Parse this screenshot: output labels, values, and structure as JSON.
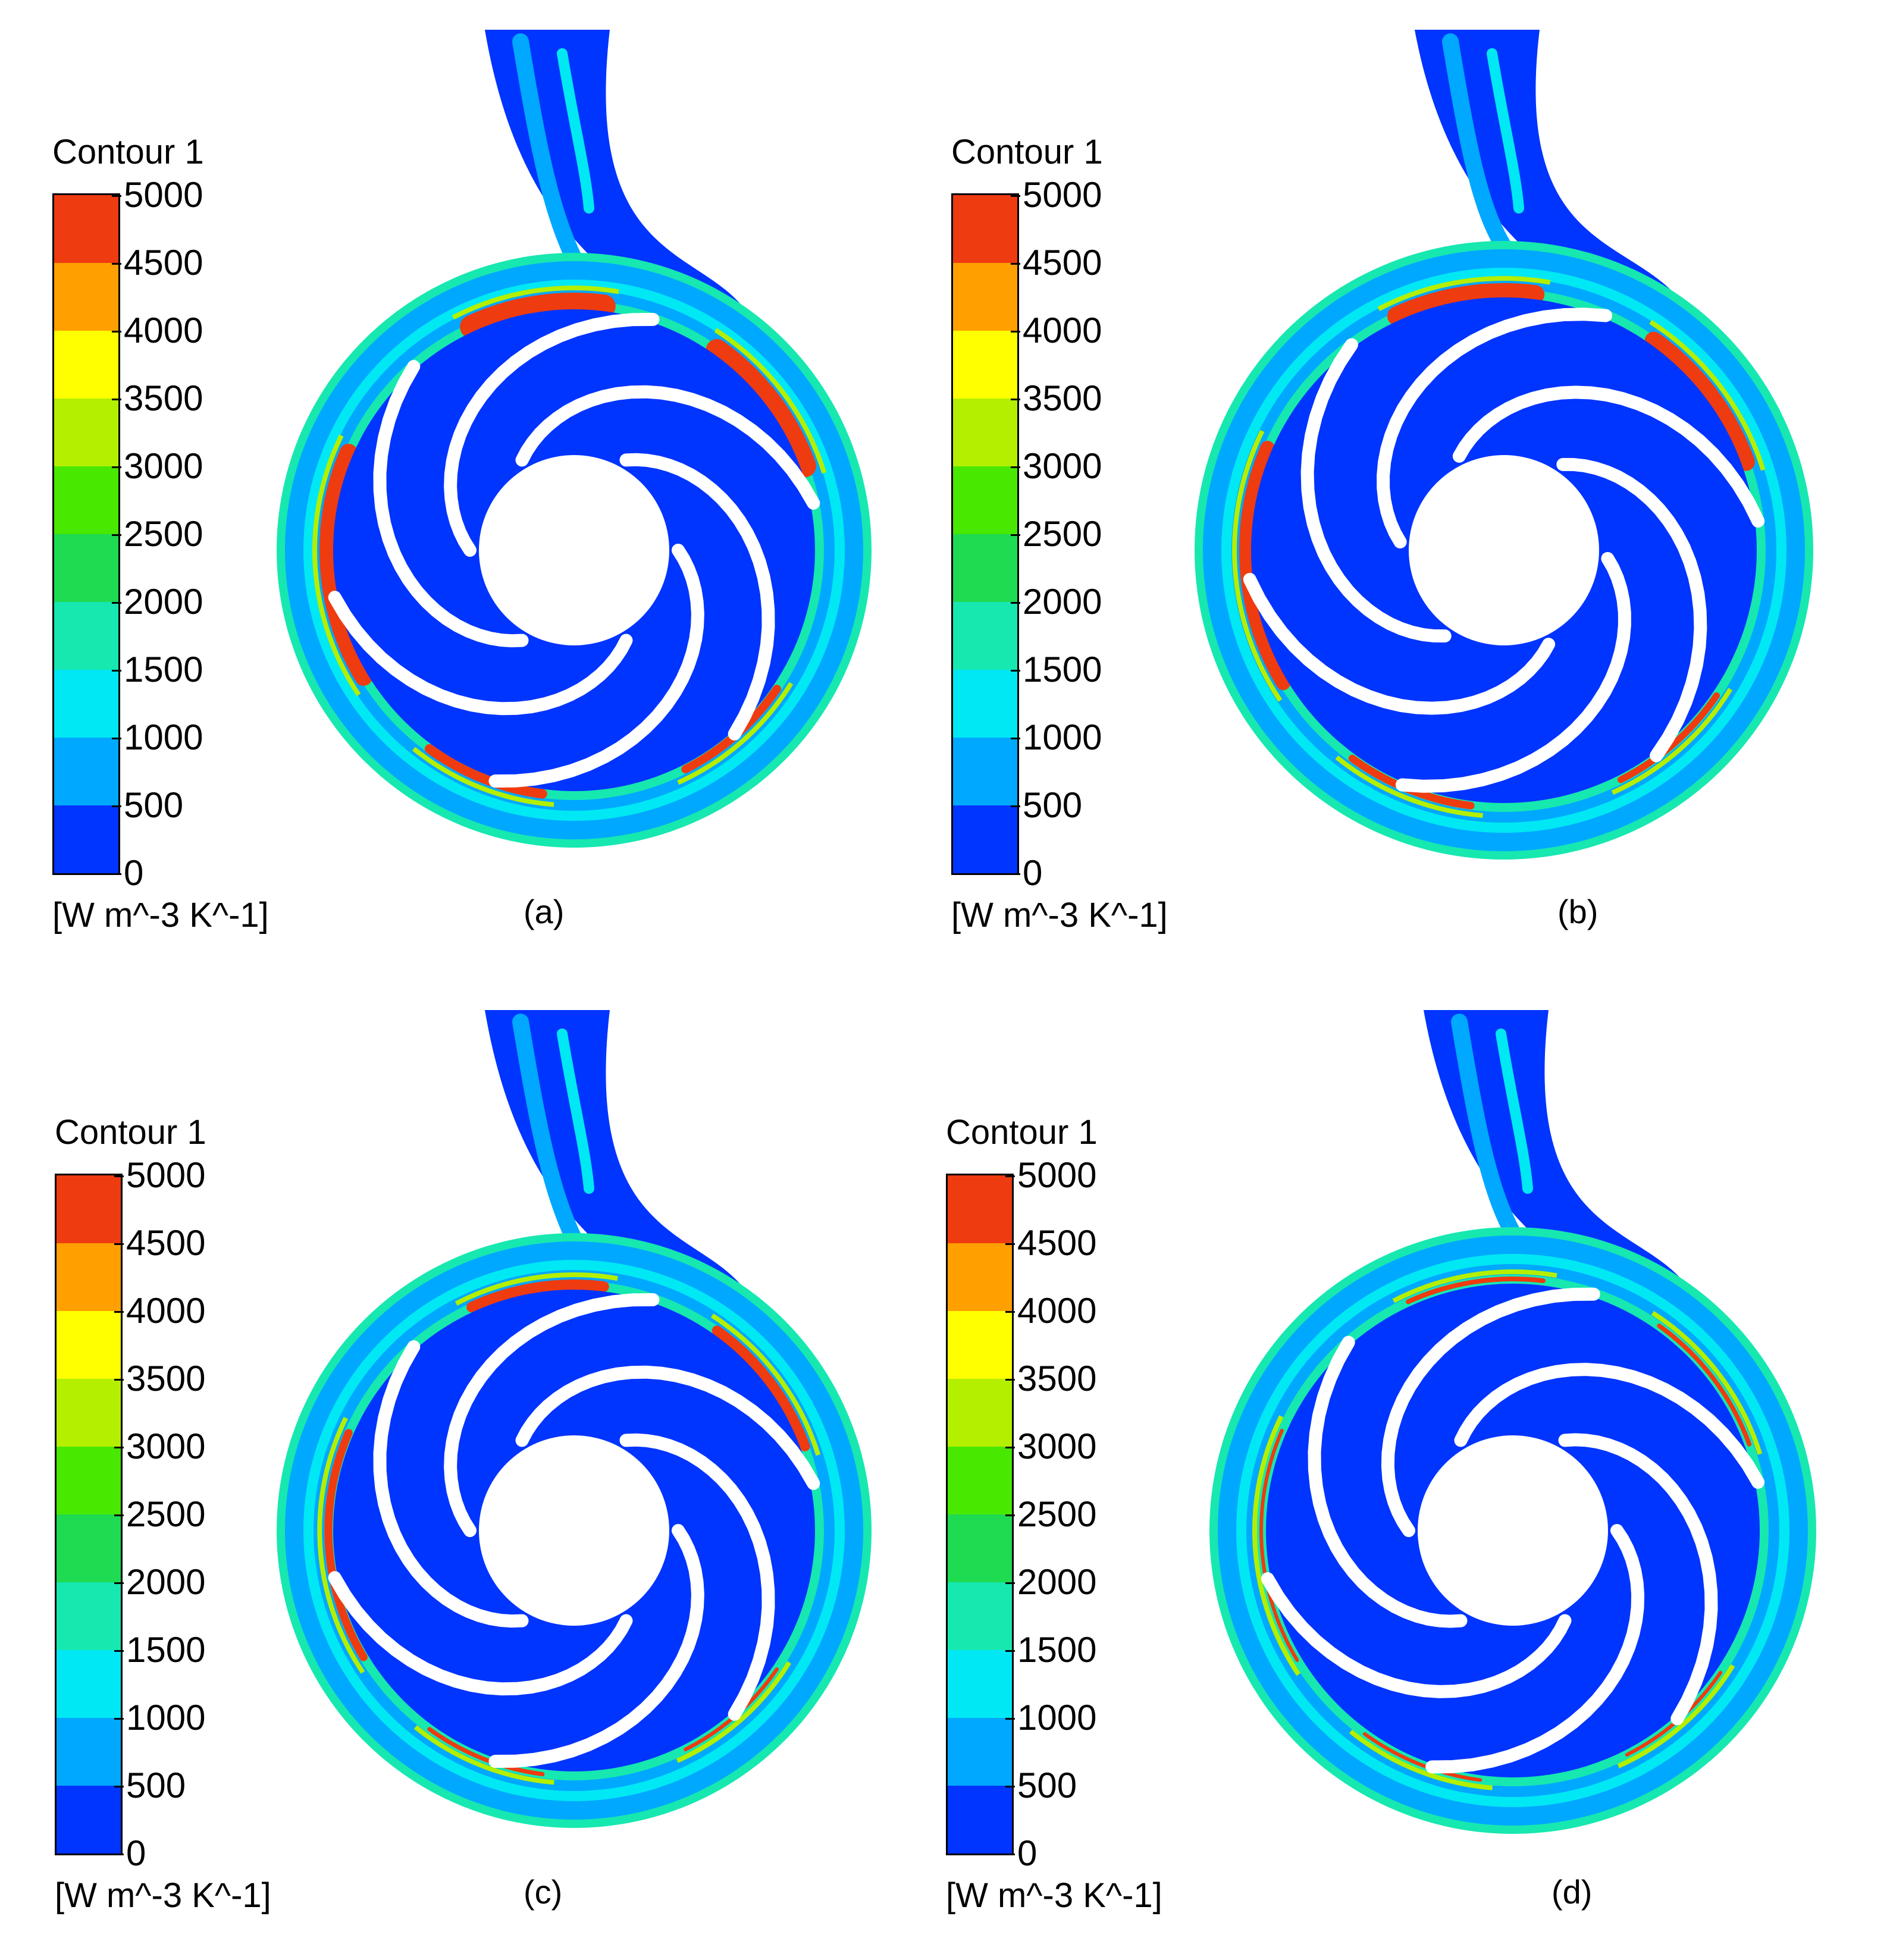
{
  "legend": {
    "title": "Contour 1",
    "unit": "[W m^-3 K^-1]",
    "ticks": [
      "5000",
      "4500",
      "4000",
      "3500",
      "3000",
      "2500",
      "2000",
      "1500",
      "1000",
      "500",
      "0"
    ],
    "colors": [
      "#ee3b10",
      "#ff9f00",
      "#ffff00",
      "#b4ef00",
      "#48e800",
      "#1edb52",
      "#16e8b0",
      "#00e8f4",
      "#00a8ff",
      "#0034ff"
    ]
  },
  "panels": [
    {
      "caption": "(a)"
    },
    {
      "caption": "(b)"
    },
    {
      "caption": "(c)"
    },
    {
      "caption": "(d)"
    }
  ]
}
